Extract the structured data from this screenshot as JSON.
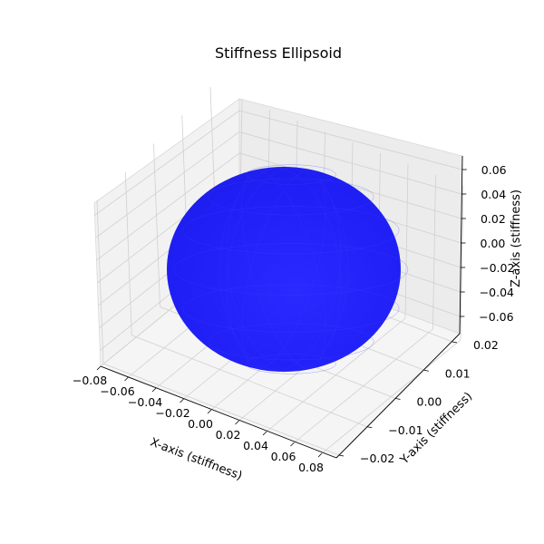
{
  "chart_data": {
    "type": "surface3d",
    "shape": "ellipsoid",
    "title": "Stiffness Ellipsoid",
    "xlabel": "X-axis (stiffness)",
    "ylabel": "Y-axis (stiffness)",
    "zlabel": "Z-axis (stiffness)",
    "xlim": [
      -0.08,
      0.08
    ],
    "ylim": [
      -0.027,
      0.027
    ],
    "zlim": [
      -0.068,
      0.068
    ],
    "xticks": [
      "−0.08",
      "−0.06",
      "−0.04",
      "−0.02",
      "0.00",
      "0.02",
      "0.04",
      "0.06",
      "0.08"
    ],
    "yticks": [
      "−0.02",
      "−0.01",
      "0.00",
      "0.01",
      "0.02"
    ],
    "zticks": [
      "−0.06",
      "−0.04",
      "−0.02",
      "0.00",
      "0.02",
      "0.04",
      "0.06"
    ],
    "semi_axes": {
      "x": 0.066,
      "y": 0.025,
      "z": 0.066
    },
    "surface_color": "#1f1fff",
    "grid": true
  }
}
